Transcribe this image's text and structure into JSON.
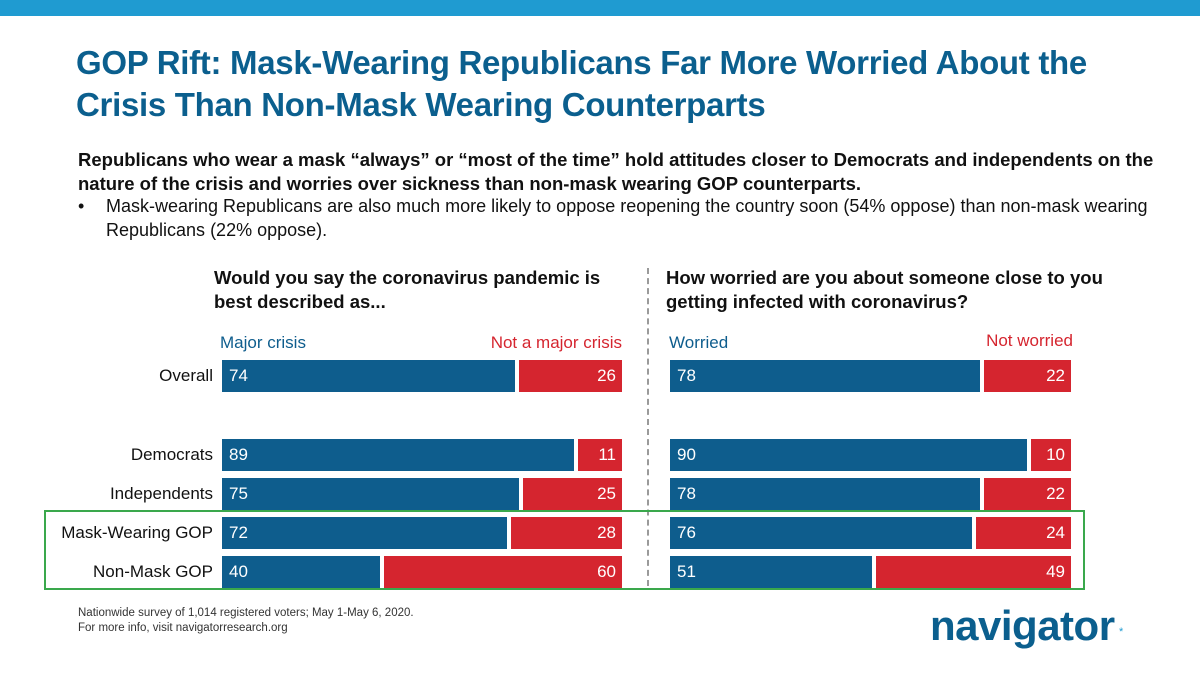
{
  "header": {
    "title": "GOP Rift: Mask-Wearing Republicans Far More Worried About the Crisis Than Non-Mask Wearing Counterparts",
    "subtitle": "Republicans who wear a mask “always” or “most of the time” hold attitudes closer to Democrats and independents on the nature of the crisis and worries over sickness than non-mask wearing GOP counterparts.",
    "bullet_marker": "•",
    "bullet": "Mask-wearing Republicans are also much more likely to oppose reopening the country soon (54% oppose) than non-mask wearing Republicans (22% oppose)."
  },
  "colors": {
    "accent": "#0b5f8e",
    "topbar": "#1f9bd1",
    "blue": "#0e5d8d",
    "red": "#d5252f",
    "highlight": "#3aa84c"
  },
  "chart_data": [
    {
      "type": "bar",
      "orientation": "horizontal-stacked",
      "title": "Would you say the coronavirus pandemic is best described as...",
      "categories": [
        "Overall",
        "Democrats",
        "Independents",
        "Mask-Wearing GOP",
        "Non-Mask GOP"
      ],
      "series": [
        {
          "name": "Major crisis",
          "values": [
            74,
            89,
            75,
            72,
            40
          ]
        },
        {
          "name": "Not a major crisis",
          "values": [
            26,
            11,
            25,
            28,
            60
          ]
        }
      ],
      "xlim": [
        0,
        100
      ]
    },
    {
      "type": "bar",
      "orientation": "horizontal-stacked",
      "title": "How worried are you about someone close to you getting infected with coronavirus?",
      "categories": [
        "Overall",
        "Democrats",
        "Independents",
        "Mask-Wearing GOP",
        "Non-Mask GOP"
      ],
      "series": [
        {
          "name": "Worried",
          "values": [
            78,
            90,
            78,
            76,
            51
          ]
        },
        {
          "name": "Not worried",
          "values": [
            22,
            10,
            22,
            24,
            49
          ]
        }
      ],
      "xlim": [
        0,
        100
      ]
    }
  ],
  "footer": {
    "line1": "Nationwide survey of 1,014 registered voters; May 1-May 6, 2020.",
    "line2": "For more info, visit navigatorresearch.org",
    "logo": "navigator",
    "logo_mark": "*"
  }
}
